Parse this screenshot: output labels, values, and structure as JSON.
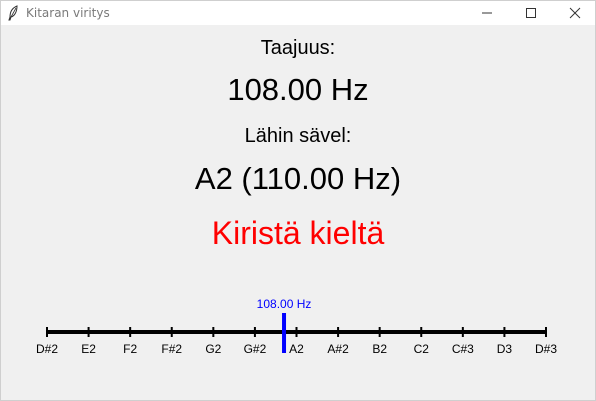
{
  "window": {
    "title": "Kitaran viritys"
  },
  "main": {
    "frequency_label": "Taajuus:",
    "frequency_value": "108.00 Hz",
    "nearest_note_label": "Lähin sävel:",
    "nearest_note_value": "A2 (110.00 Hz)",
    "status_text": "Kiristä kieltä",
    "status_color": "#ff0000"
  },
  "scale": {
    "notes": [
      "D#2",
      "E2",
      "F2",
      "F#2",
      "G2",
      "G#2",
      "A2",
      "A#2",
      "B2",
      "C2",
      "C#3",
      "D3",
      "D#3"
    ],
    "indicator_label": "108.00 Hz",
    "indicator_position_semitones": 5.7,
    "indicator_color": "#0000ff"
  }
}
